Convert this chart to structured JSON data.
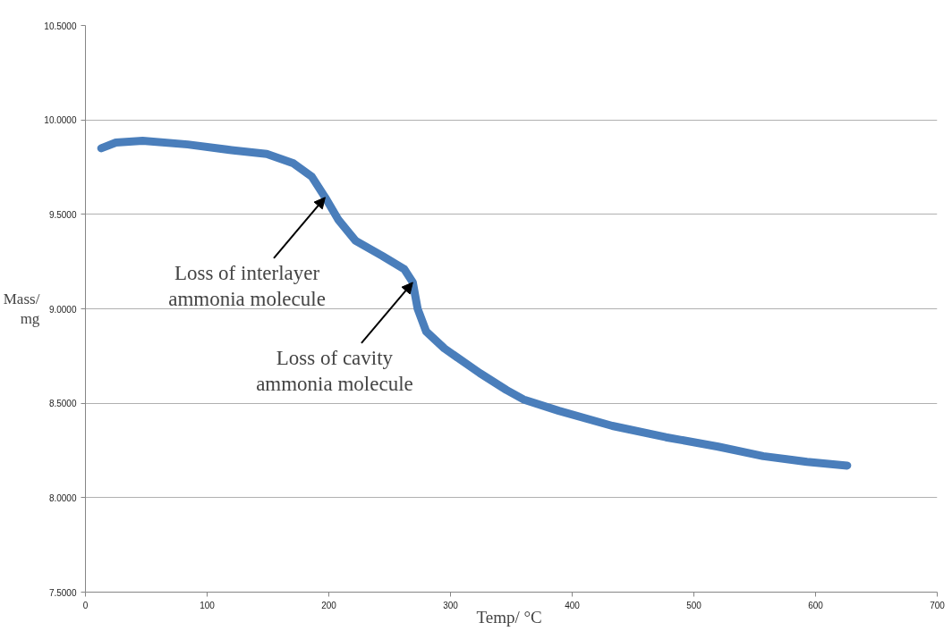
{
  "chart_data": {
    "type": "line",
    "xlabel": "Temp/  °C",
    "ylabel": "Mass/\nmg",
    "x": [
      13,
      25,
      47,
      84,
      120,
      149,
      171,
      186,
      197,
      208,
      222,
      244,
      262,
      269,
      273,
      280,
      295,
      324,
      346,
      360,
      389,
      433,
      477,
      520,
      557,
      593,
      626
    ],
    "series": [
      {
        "color": "#4a7ebb",
        "values": [
          9.85,
          9.88,
          9.89,
          9.87,
          9.84,
          9.82,
          9.77,
          9.7,
          9.59,
          9.47,
          9.36,
          9.28,
          9.21,
          9.14,
          9.0,
          8.88,
          8.79,
          8.66,
          8.57,
          8.52,
          8.46,
          8.38,
          8.32,
          8.27,
          8.22,
          8.19,
          8.17
        ]
      }
    ],
    "xlim": [
      0,
      700
    ],
    "ylim": [
      7.5,
      10.5
    ],
    "xticks": [
      0,
      100,
      200,
      300,
      400,
      500,
      600,
      700
    ],
    "yticks": [
      {
        "value": 7.5,
        "label": "7.5000"
      },
      {
        "value": 8,
        "label": "8.0000"
      },
      {
        "value": 8.5,
        "label": "8.5000"
      },
      {
        "value": 9,
        "label": "9.0000"
      },
      {
        "value": 9.5,
        "label": "9.5000"
      },
      {
        "value": 10,
        "label": "10.0000"
      },
      {
        "value": 10.5,
        "label": "10.5000"
      }
    ],
    "grid": "y",
    "marker": "none",
    "line_style": "solid",
    "annotations": [
      {
        "text": "Loss of interlayer\nammonia molecule",
        "x": 197,
        "y": 9.59
      },
      {
        "text": "Loss of cavity\nammonia molecule",
        "x": 269,
        "y": 9.14
      }
    ]
  }
}
